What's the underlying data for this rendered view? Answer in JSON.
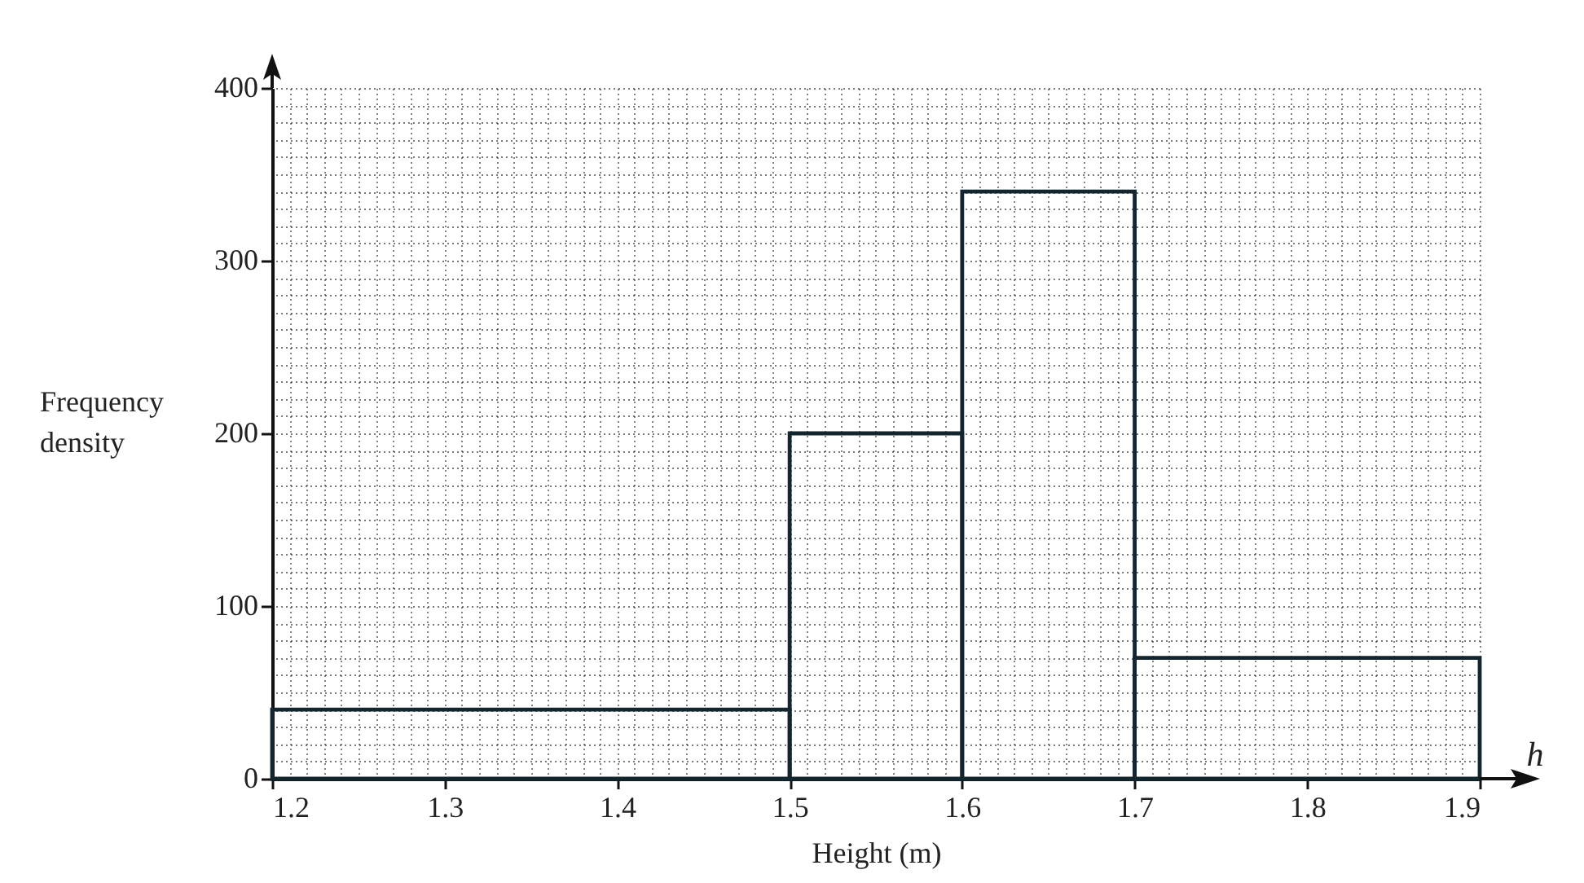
{
  "chart_data": {
    "type": "histogram",
    "xlabel": "Height (m)",
    "ylabel": "Frequency density",
    "annotations": [
      "h"
    ],
    "bins": [
      1.2,
      1.5,
      1.6,
      1.7,
      1.9
    ],
    "values": [
      40,
      200,
      340,
      70
    ],
    "color": "#13262f",
    "xlim": [
      1.2,
      1.9
    ],
    "ylim": [
      0,
      400
    ],
    "xticks": [
      1.2,
      1.3,
      1.4,
      1.5,
      1.6,
      1.7,
      1.8,
      1.9
    ],
    "yticks": [
      0,
      100,
      200,
      300,
      400
    ],
    "grid": true
  }
}
